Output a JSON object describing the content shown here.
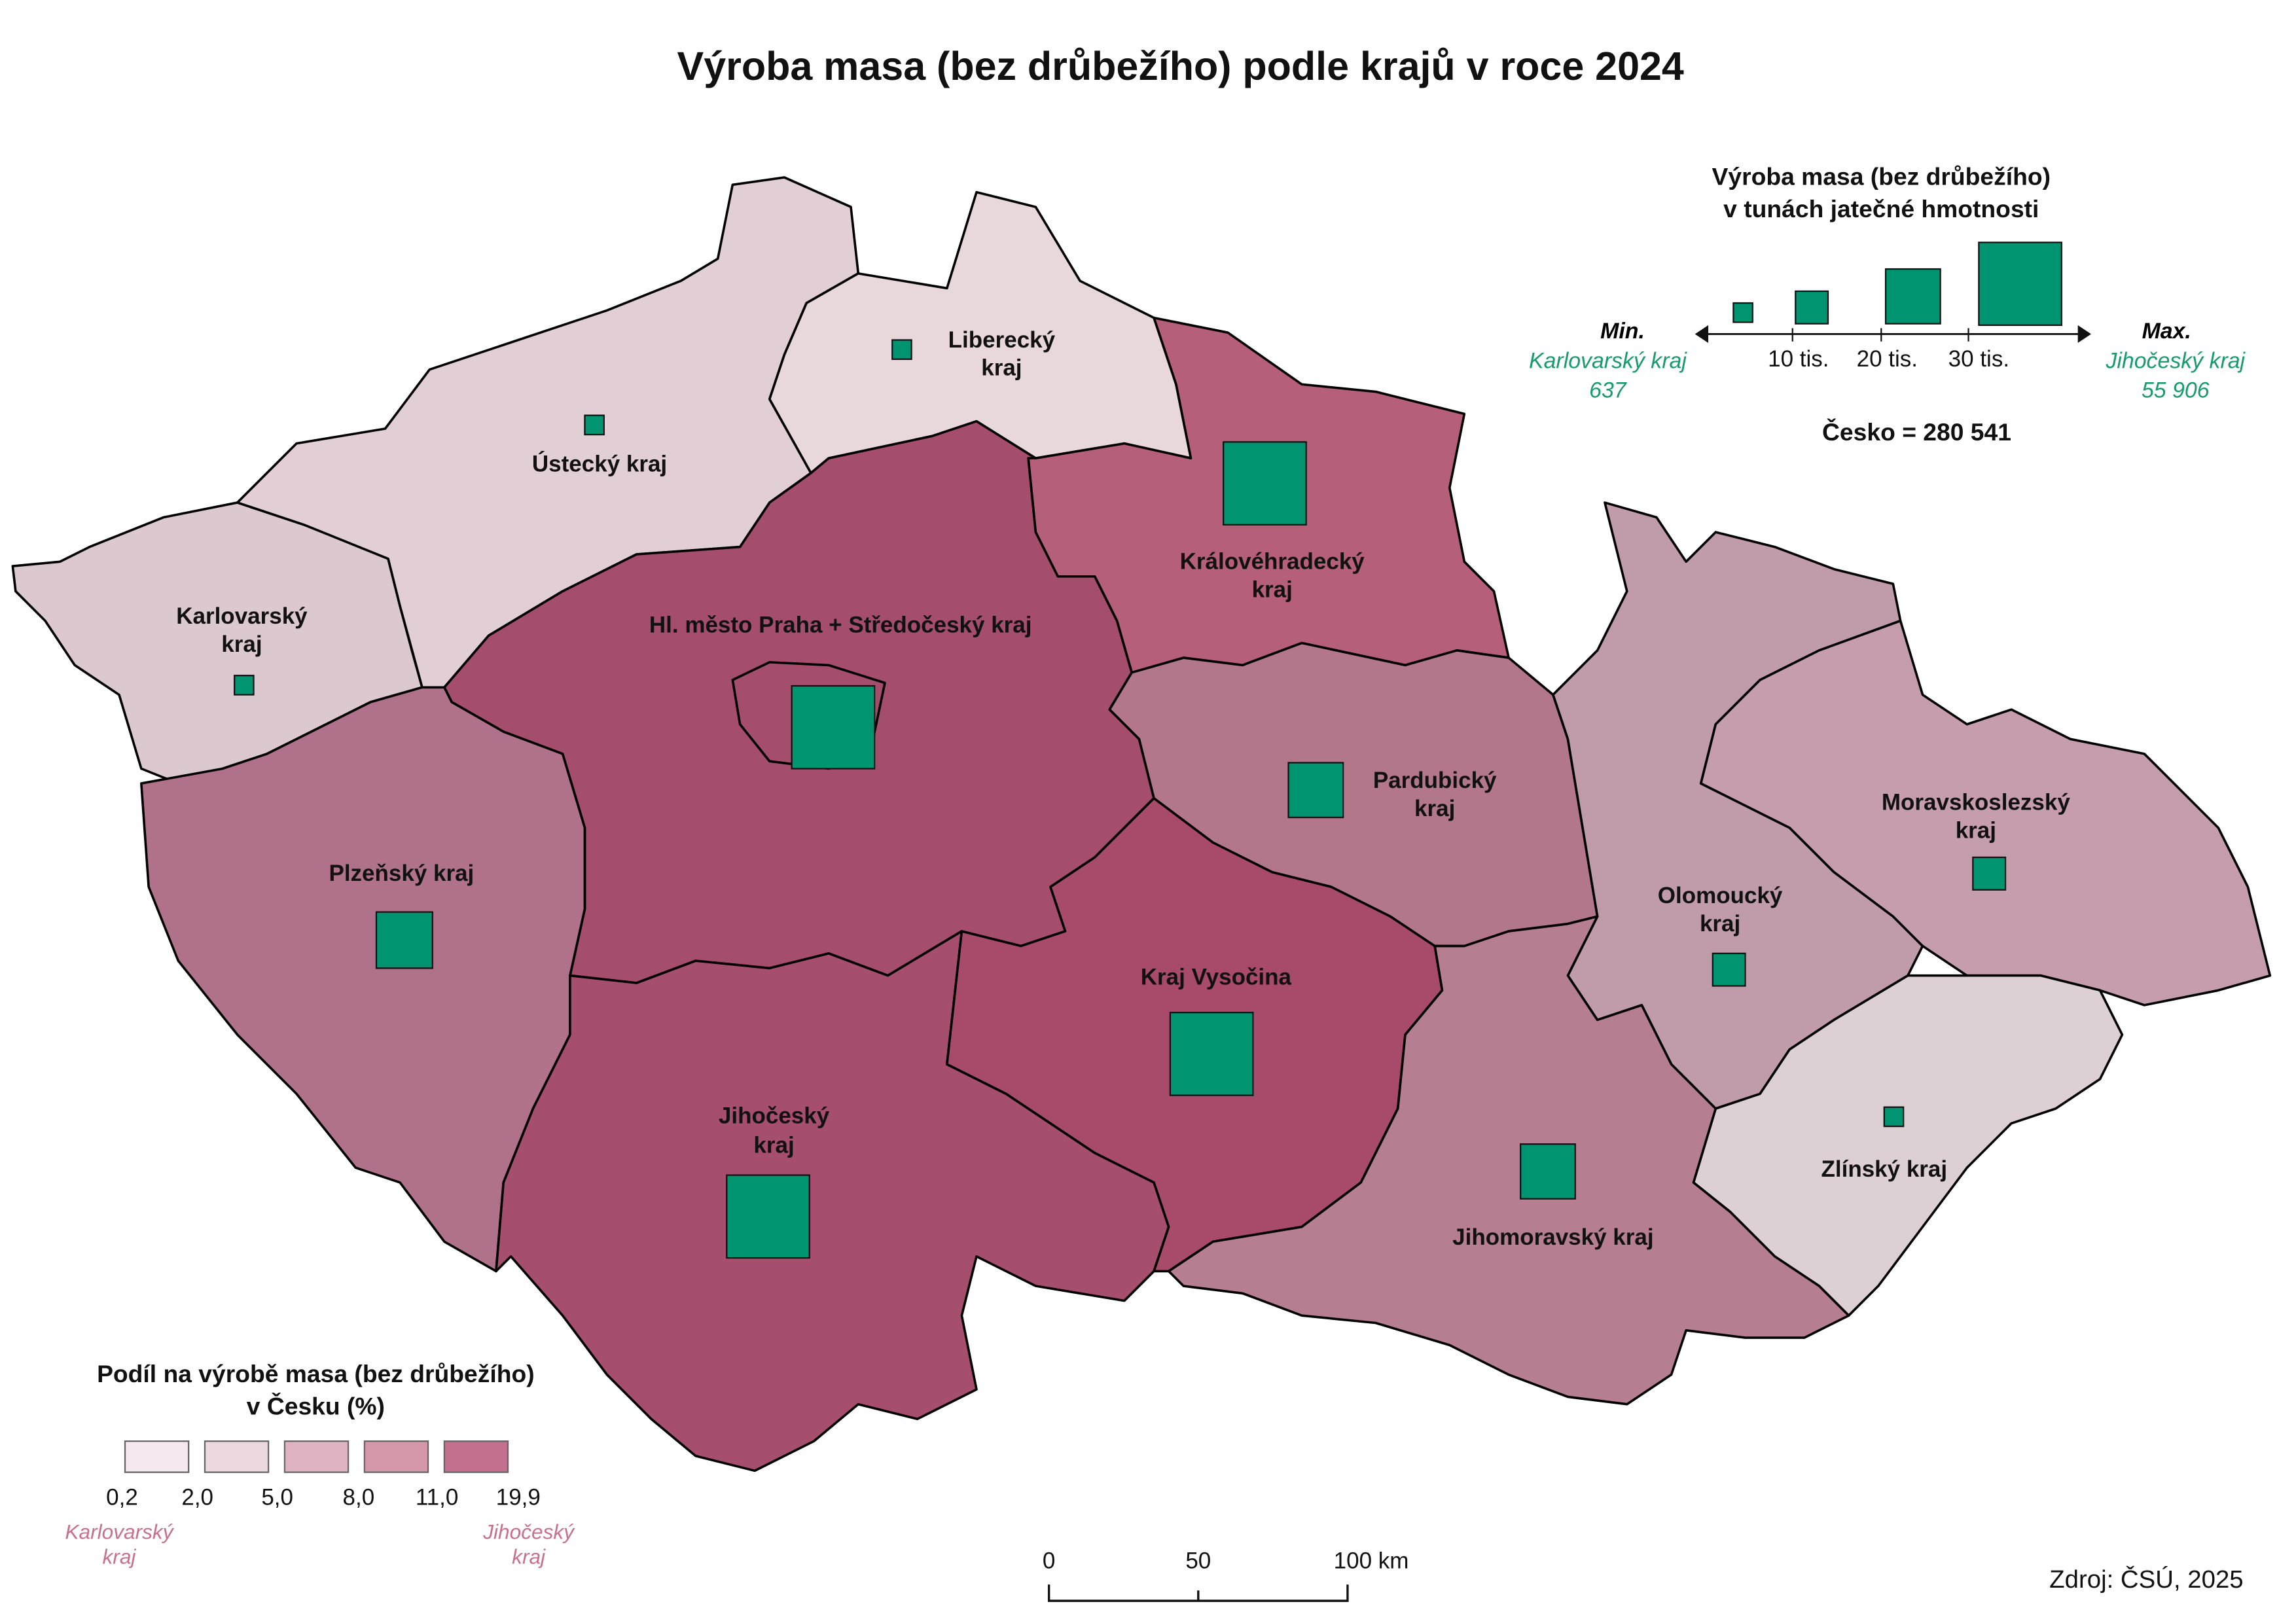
{
  "title": "Výroba masa (bez drůbežího) podle krajů v roce 2024",
  "regions": {
    "karlovarsky": {
      "label1": "Karlovarský",
      "label2": "kraj",
      "fill": "#dcc8cf"
    },
    "ustecky": {
      "label1": "Ústecký kraj",
      "fill": "#e2cfd5"
    },
    "liberecky": {
      "label1": "Liberecký",
      "label2": "kraj",
      "fill": "#e8d8dc"
    },
    "kralovehradecky": {
      "label1": "Královéhradecký",
      "label2": "kraj",
      "fill": "#b55f7a"
    },
    "stredocesky": {
      "label1": "Hl. město Praha + Středočeský kraj",
      "fill": "#a54d6d"
    },
    "plzensky": {
      "label1": "Plzeňský kraj",
      "fill": "#b0728a"
    },
    "jihocesky": {
      "label1": "Jihočeský",
      "label2": "kraj",
      "fill": "#a64e6e"
    },
    "vysocina": {
      "label1": "Kraj Vysočina",
      "fill": "#a84b6b"
    },
    "pardubicky": {
      "label1": "Pardubický",
      "label2": "kraj",
      "fill": "#b3778b"
    },
    "olomoucky": {
      "label1": "Olomoucký",
      "label2": "kraj",
      "fill": "#c09ba9"
    },
    "moravskoslezsky": {
      "label1": "Moravskoslezský",
      "label2": "kraj",
      "fill": "#c69dac"
    },
    "zlinsky": {
      "label1": "Zlínský kraj",
      "fill": "#ddd0d4"
    },
    "jihomoravsky": {
      "label1": "Jihomoravský kraj",
      "fill": "#b67e91"
    }
  },
  "symbol_legend": {
    "title1": "Výroba masa (bez drůbežího)",
    "title2": "v tunách jatečné hmotnosti",
    "min_label": "Min.",
    "max_label": "Max.",
    "min_region": "Karlovarský kraj",
    "min_value": "637",
    "max_region": "Jihočeský kraj",
    "max_value": "55 906",
    "ticks": [
      "10 tis.",
      "20 tis.",
      "30 tis."
    ],
    "total": "Česko = 280 541",
    "symbol_color": "#009470"
  },
  "choropleth_legend": {
    "title1": "Podíl na výrobě masa (bez drůbežího)",
    "title2": "v Česku (%)",
    "breaks": [
      "0,2",
      "2,0",
      "5,0",
      "8,0",
      "11,0",
      "19,9"
    ],
    "colors": [
      "#f5e8ee",
      "#ecd9df",
      "#deb4c2",
      "#d597aa",
      "#c4708f"
    ],
    "min_region1": "Karlovarský",
    "min_region2": "kraj",
    "max_region1": "Jihočeský",
    "max_region2": "kraj"
  },
  "scale_bar": {
    "ticks": [
      "0",
      "50",
      "100 km"
    ]
  },
  "source": "Zdroj: ČSÚ, 2025"
}
